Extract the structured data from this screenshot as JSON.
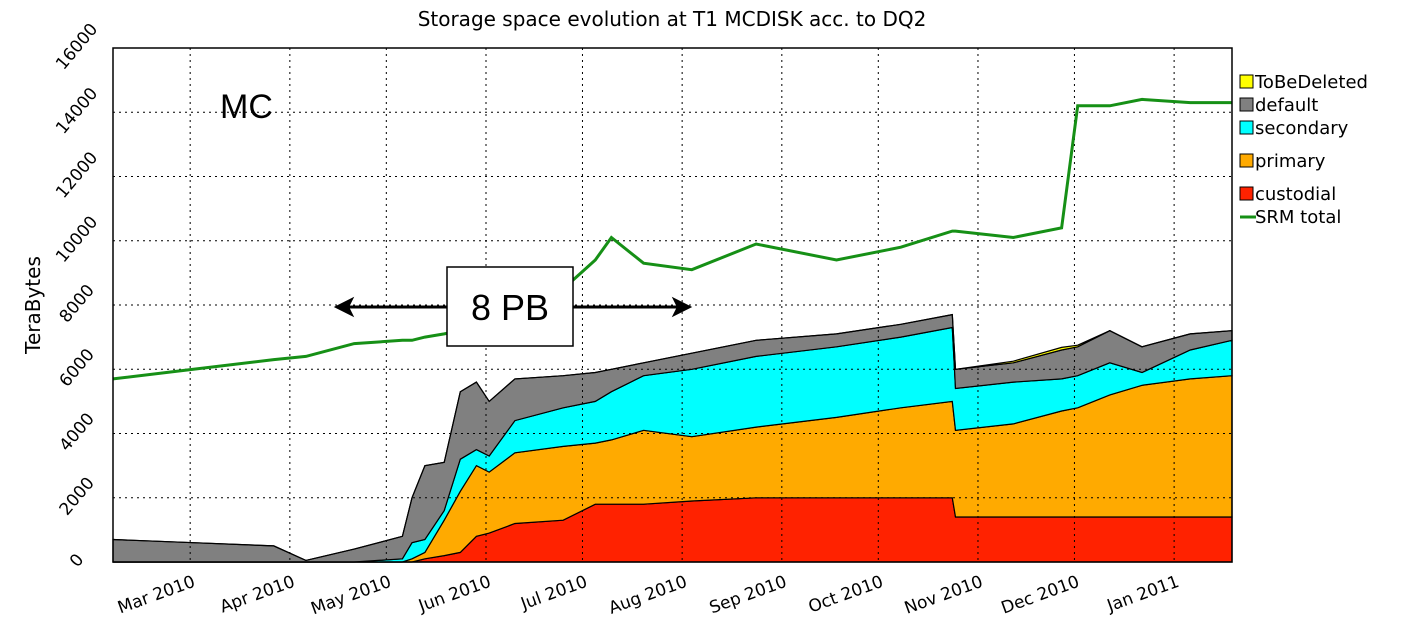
{
  "chart_data": {
    "type": "area",
    "stacked": true,
    "title": "Storage space evolution at T1 MCDISK acc. to DQ2",
    "y_label": "TeraBytes",
    "annotations": [
      "MC",
      "8 PB"
    ],
    "x": [
      35,
      60,
      85,
      95,
      110,
      125,
      128,
      132,
      138,
      143,
      148,
      152,
      160,
      175,
      185,
      190,
      200,
      215,
      235,
      260,
      280,
      296,
      297,
      315,
      330,
      335,
      345,
      355,
      370,
      383
    ],
    "xlim": [
      35,
      383
    ],
    "xticks": [
      {
        "value": 59,
        "label": "Mar 2010"
      },
      {
        "value": 90,
        "label": "Apr 2010"
      },
      {
        "value": 120,
        "label": "May 2010"
      },
      {
        "value": 151,
        "label": "Jun 2010"
      },
      {
        "value": 181,
        "label": "Jul 2010"
      },
      {
        "value": 212,
        "label": "Aug 2010"
      },
      {
        "value": 243,
        "label": "Sep 2010"
      },
      {
        "value": 273,
        "label": "Oct 2010"
      },
      {
        "value": 304,
        "label": "Nov 2010"
      },
      {
        "value": 334,
        "label": "Dec 2010"
      },
      {
        "value": 365,
        "label": "Jan 2011"
      }
    ],
    "ylim": [
      0,
      16000
    ],
    "yticks": [
      0,
      2000,
      4000,
      6000,
      8000,
      10000,
      12000,
      14000,
      16000
    ],
    "grid": true,
    "legend": "right",
    "series": [
      {
        "name": "ToBeDeleted",
        "color": "#ffff00",
        "values": [
          0,
          0,
          0,
          0,
          0,
          0,
          0,
          0,
          0,
          0,
          0,
          0,
          0,
          0,
          0,
          0,
          0,
          0,
          0,
          0,
          0,
          0,
          0,
          50,
          80,
          50,
          0,
          0,
          0,
          0
        ]
      },
      {
        "name": "default",
        "color": "#808080",
        "values": [
          700,
          600,
          500,
          50,
          400,
          700,
          1400,
          2300,
          1500,
          2100,
          2100,
          1700,
          1300,
          1000,
          900,
          700,
          400,
          500,
          500,
          400,
          400,
          400,
          600,
          600,
          900,
          900,
          1000,
          800,
          500,
          300
        ]
      },
      {
        "name": "secondary",
        "color": "#00ffff",
        "values": [
          0,
          0,
          0,
          0,
          0,
          100,
          500,
          400,
          300,
          1000,
          500,
          500,
          1000,
          1200,
          1300,
          1500,
          1700,
          2100,
          2200,
          2200,
          2200,
          2300,
          1300,
          1300,
          1000,
          1000,
          1000,
          400,
          900,
          1100
        ]
      },
      {
        "name": "primary",
        "color": "#ffaa00",
        "values": [
          0,
          0,
          0,
          0,
          0,
          0,
          100,
          200,
          1100,
          1900,
          2200,
          1900,
          2200,
          2300,
          1900,
          2000,
          2300,
          2000,
          2200,
          2500,
          2800,
          3000,
          2700,
          2900,
          3300,
          3400,
          3800,
          4100,
          4300,
          4400
        ]
      },
      {
        "name": "custodial",
        "color": "#ff2200",
        "values": [
          0,
          0,
          0,
          0,
          0,
          0,
          0,
          100,
          200,
          300,
          800,
          900,
          1200,
          1300,
          1800,
          1800,
          1800,
          1900,
          2000,
          2000,
          2000,
          2000,
          1400,
          1400,
          1400,
          1400,
          1400,
          1400,
          1400,
          1400
        ]
      },
      {
        "name": "SRM total",
        "color": "#169016",
        "type": "line",
        "values": [
          5700,
          6000,
          6300,
          6400,
          6800,
          6900,
          6900,
          7000,
          7100,
          7200,
          7500,
          7800,
          8000,
          8500,
          9400,
          10100,
          9300,
          9100,
          9900,
          9400,
          9800,
          10300,
          10300,
          10100,
          10400,
          14200,
          14200,
          14400,
          14300,
          14300
        ]
      }
    ]
  }
}
